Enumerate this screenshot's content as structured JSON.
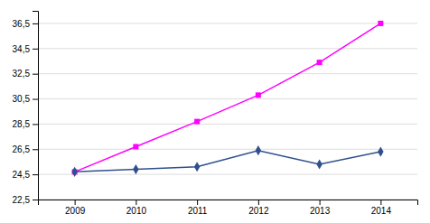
{
  "chart_data": {
    "type": "line",
    "x": [
      2009,
      2010,
      2011,
      2012,
      2013,
      2014
    ],
    "xlim": [
      2008.4,
      2014.6
    ],
    "xticks": [
      2009,
      2010,
      2011,
      2012,
      2013,
      2014
    ],
    "ylim": [
      22.5,
      37.5
    ],
    "yticks": [
      {
        "value": 22.5,
        "label": "22,5"
      },
      {
        "value": 24.5,
        "label": "24,5"
      },
      {
        "value": 26.5,
        "label": "26,5"
      },
      {
        "value": 28.5,
        "label": "28,5"
      },
      {
        "value": 30.5,
        "label": "30,5"
      },
      {
        "value": 32.5,
        "label": "32,5"
      },
      {
        "value": 34.5,
        "label": "34,5"
      },
      {
        "value": 36.5,
        "label": "36,5"
      }
    ],
    "grid": true,
    "series": [
      {
        "color": "#FF00FF",
        "marker": "square",
        "values": [
          24.7,
          26.7,
          28.7,
          30.8,
          33.4,
          36.5
        ]
      },
      {
        "color": "#2F4F8F",
        "marker": "diamond",
        "values": [
          24.7,
          24.9,
          25.1,
          26.4,
          25.3,
          26.3
        ]
      }
    ]
  }
}
